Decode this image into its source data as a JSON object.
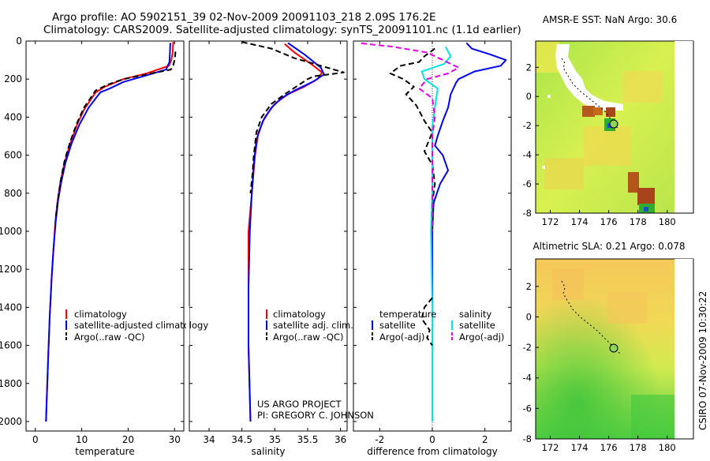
{
  "header": {
    "line1": "Argo profile: AO 5902151_39 02-Nov-2009 20091103_218 2.09S 176.2E",
    "line2": "Climatology: CARS2009. Satellite-adjusted climatology: synTS_20091101.nc (1.1d earlier)"
  },
  "stamp": "CSIRO 07-Nov-2009 10:30:22",
  "credits": {
    "line1": "US ARGO PROJECT",
    "line2": "PI: GREGORY C. JOHNSON"
  },
  "colors": {
    "clim": "#ff0000",
    "sat": "#0000ff",
    "argo": "#000000",
    "sal_sat": "#00e5e5",
    "sal_argo": "#e600e6"
  },
  "chart_data": [
    {
      "type": "line",
      "id": "temperature",
      "xlabel": "temperature",
      "ylabel": "",
      "xlim": [
        -2,
        32
      ],
      "ylim": [
        0,
        2050
      ],
      "x_ticks": [
        0,
        10,
        20,
        30
      ],
      "y_ticks": [
        0,
        200,
        400,
        600,
        800,
        1000,
        1200,
        1400,
        1600,
        1800,
        2000
      ],
      "legend": [
        "climatology",
        "satellite-adjusted climatology",
        "Argo(..raw -QC)"
      ],
      "series": [
        {
          "name": "climatology",
          "color": "#ff0000",
          "dash": "",
          "points": [
            [
              29.7,
              5
            ],
            [
              29.6,
              60
            ],
            [
              29.3,
              100
            ],
            [
              28.8,
              130
            ],
            [
              24,
              170
            ],
            [
              19,
              200
            ],
            [
              15,
              240
            ],
            [
              13,
              270
            ],
            [
              10.5,
              360
            ],
            [
              9,
              440
            ],
            [
              7.5,
              540
            ],
            [
              6.3,
              640
            ],
            [
              5.4,
              740
            ],
            [
              4.8,
              840
            ],
            [
              4.3,
              950
            ],
            [
              3.9,
              1100
            ],
            [
              3.5,
              1250
            ],
            [
              3.1,
              1450
            ],
            [
              2.8,
              1650
            ],
            [
              2.5,
              1850
            ],
            [
              2.3,
              2000
            ]
          ]
        },
        {
          "name": "satellite-adjusted climatology",
          "color": "#0000ff",
          "dash": "",
          "points": [
            [
              29.1,
              10
            ],
            [
              29,
              60
            ],
            [
              28.9,
              110
            ],
            [
              28.2,
              150
            ],
            [
              24,
              180
            ],
            [
              19,
              215
            ],
            [
              16,
              250
            ],
            [
              14,
              270
            ],
            [
              11.5,
              350
            ],
            [
              9.5,
              440
            ],
            [
              7.8,
              540
            ],
            [
              6.5,
              640
            ],
            [
              5.6,
              740
            ],
            [
              4.9,
              840
            ],
            [
              4.4,
              950
            ],
            [
              3.9,
              1100
            ],
            [
              3.5,
              1250
            ],
            [
              3.1,
              1450
            ],
            [
              2.8,
              1650
            ],
            [
              2.5,
              1850
            ],
            [
              2.3,
              2000
            ]
          ]
        },
        {
          "name": "Argo(..raw -QC)",
          "color": "#000000",
          "dash": "7,4",
          "points": [
            [
              30.2,
              55
            ],
            [
              30.1,
              90
            ],
            [
              29.7,
              130
            ],
            [
              29.2,
              150
            ],
            [
              25,
              170
            ],
            [
              19,
              200
            ],
            [
              15.5,
              230
            ],
            [
              13,
              260
            ],
            [
              10.5,
              350
            ],
            [
              9,
              430
            ],
            [
              7.5,
              530
            ],
            [
              6.3,
              630
            ],
            [
              5.5,
              730
            ],
            [
              4.9,
              830
            ],
            [
              4.4,
              930
            ]
          ]
        }
      ]
    },
    {
      "type": "line",
      "id": "salinity",
      "xlabel": "salinity",
      "ylabel": "",
      "xlim": [
        33.7,
        36.1
      ],
      "ylim": [
        0,
        2050
      ],
      "x_ticks": [
        34,
        34.5,
        35,
        35.5,
        36
      ],
      "legend": [
        "climatology",
        "satellite adj. clim.",
        "Argo(..raw -QC)"
      ],
      "series": [
        {
          "name": "climatology",
          "color": "#ff0000",
          "dash": "",
          "points": [
            [
              35.15,
              15
            ],
            [
              35.3,
              60
            ],
            [
              35.55,
              120
            ],
            [
              35.72,
              165
            ],
            [
              35.65,
              200
            ],
            [
              35.45,
              240
            ],
            [
              35.2,
              280
            ],
            [
              35,
              330
            ],
            [
              34.85,
              400
            ],
            [
              34.75,
              480
            ],
            [
              34.7,
              600
            ],
            [
              34.65,
              800
            ],
            [
              34.6,
              1000
            ],
            [
              34.6,
              1300
            ],
            [
              34.6,
              1600
            ],
            [
              34.63,
              2000
            ]
          ]
        },
        {
          "name": "satellite adj. clim.",
          "color": "#0000ff",
          "dash": "",
          "points": [
            [
              35.2,
              10
            ],
            [
              35.45,
              70
            ],
            [
              35.7,
              140
            ],
            [
              35.75,
              175
            ],
            [
              35.6,
              210
            ],
            [
              35.3,
              260
            ],
            [
              35.1,
              300
            ],
            [
              34.95,
              350
            ],
            [
              34.82,
              420
            ],
            [
              34.72,
              520
            ],
            [
              34.68,
              650
            ],
            [
              34.65,
              800
            ],
            [
              34.62,
              1000
            ],
            [
              34.6,
              1300
            ],
            [
              34.6,
              1600
            ],
            [
              34.63,
              2000
            ]
          ]
        },
        {
          "name": "Argo(..raw -QC)",
          "color": "#000000",
          "dash": "7,4",
          "points": [
            [
              34.5,
              5
            ],
            [
              34.95,
              40
            ],
            [
              35.3,
              90
            ],
            [
              35.7,
              130
            ],
            [
              36.05,
              165
            ],
            [
              35.6,
              185
            ],
            [
              35.5,
              200
            ],
            [
              35.15,
              280
            ],
            [
              34.95,
              330
            ],
            [
              34.8,
              400
            ],
            [
              34.72,
              480
            ],
            [
              34.68,
              600
            ],
            [
              34.66,
              700
            ],
            [
              34.63,
              800
            ]
          ]
        }
      ]
    },
    {
      "type": "line",
      "id": "difference",
      "xlabel": "difference from climatology",
      "ylabel": "",
      "xlim": [
        -3,
        3
      ],
      "ylim": [
        0,
        2050
      ],
      "x_ticks": [
        -2,
        0,
        2
      ],
      "legend": [
        "temperature",
        "satellite",
        "Argo(-adj)",
        "salinity",
        "satellite",
        "Argo(-adj)"
      ],
      "series": [
        {
          "name": "temperature satellite",
          "color": "#0000ff",
          "dash": "",
          "points": [
            [
              1.3,
              10
            ],
            [
              1.5,
              40
            ],
            [
              2.2,
              70
            ],
            [
              2.8,
              100
            ],
            [
              2.6,
              130
            ],
            [
              1.6,
              160
            ],
            [
              1.0,
              200
            ],
            [
              0.9,
              220
            ],
            [
              0.7,
              280
            ],
            [
              0.6,
              350
            ],
            [
              0.4,
              420
            ],
            [
              0.2,
              500
            ],
            [
              0.1,
              550
            ],
            [
              0.4,
              600
            ],
            [
              0.6,
              680
            ],
            [
              0.3,
              750
            ],
            [
              0.05,
              850
            ],
            [
              0,
              1000
            ],
            [
              0,
              1500
            ],
            [
              0,
              2000
            ]
          ]
        },
        {
          "name": "temperature Argo(-adj)",
          "color": "#000000",
          "dash": "7,4",
          "points": [
            [
              0.1,
              40
            ],
            [
              -0.3,
              80
            ],
            [
              -0.5,
              110
            ],
            [
              -1.2,
              130
            ],
            [
              -1.6,
              170
            ],
            [
              -1.1,
              200
            ],
            [
              -0.7,
              240
            ],
            [
              -1.0,
              280
            ],
            [
              -0.6,
              340
            ],
            [
              -0.3,
              420
            ],
            [
              0,
              480
            ],
            [
              -0.3,
              580
            ],
            [
              0,
              650
            ],
            [
              0.1,
              750
            ],
            [
              0,
              850
            ],
            [
              0,
              1000
            ]
          ]
        },
        {
          "name": "salinity satellite",
          "color": "#00e5e5",
          "dash": "",
          "points": [
            [
              0.5,
              30
            ],
            [
              0.7,
              80
            ],
            [
              0.45,
              120
            ],
            [
              -0.4,
              160
            ],
            [
              -0.3,
              200
            ],
            [
              0.2,
              250
            ],
            [
              0.1,
              350
            ],
            [
              0,
              450
            ],
            [
              0,
              600
            ],
            [
              0,
              800
            ],
            [
              -0.05,
              1000
            ],
            [
              0,
              1400
            ],
            [
              0,
              1700
            ],
            [
              0,
              2000
            ]
          ]
        },
        {
          "name": "salinity Argo(-adj)",
          "color": "#e600e6",
          "dash": "7,4",
          "points": [
            [
              -2.7,
              12
            ],
            [
              -1.5,
              30
            ],
            [
              -0.2,
              60
            ],
            [
              0.4,
              100
            ],
            [
              1.0,
              140
            ],
            [
              0.6,
              170
            ],
            [
              -0.2,
              200
            ],
            [
              -0.5,
              250
            ],
            [
              0,
              300
            ],
            [
              0.1,
              400
            ],
            [
              0,
              500
            ],
            [
              0,
              600
            ],
            [
              0,
              800
            ],
            [
              0,
              1000
            ]
          ]
        },
        {
          "name": "deep temperature Argo",
          "color": "#000000",
          "dash": "7,4",
          "points": [
            [
              0,
              1350
            ],
            [
              -0.3,
              1400
            ],
            [
              -0.4,
              1460
            ],
            [
              -0.1,
              1520
            ],
            [
              -0.2,
              1560
            ],
            [
              0,
              1600
            ]
          ]
        }
      ]
    },
    {
      "type": "heatmap",
      "id": "sst-map",
      "title": "AMSR-E SST: NaN Argo: 30.6",
      "xlim": [
        171,
        180.5
      ],
      "ylim": [
        -8,
        3.8
      ],
      "x_ticks": [
        172,
        174,
        176,
        178,
        180
      ],
      "y_ticks": [
        2,
        0,
        -2,
        -4,
        -6,
        -8
      ],
      "float_position": [
        176.2,
        -2.09
      ]
    },
    {
      "type": "heatmap",
      "id": "sla-map",
      "title": "Altimetric SLA: 0.21 Argo: 0.078",
      "xlim": [
        171,
        180.5
      ],
      "ylim": [
        -8,
        3.8
      ],
      "x_ticks": [
        172,
        174,
        176,
        178,
        180
      ],
      "y_ticks": [
        2,
        0,
        -2,
        -4,
        -6,
        -8
      ],
      "float_position": [
        176.2,
        -2.09
      ]
    }
  ]
}
